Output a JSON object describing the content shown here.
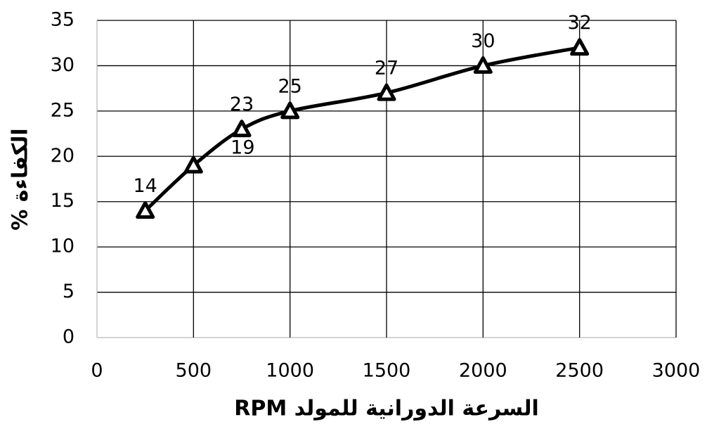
{
  "chart_data": {
    "type": "line",
    "xlabel": "السرعة الدورانية  للمولد RPM",
    "ylabel": "الكفاءة %",
    "x": [
      250,
      500,
      750,
      1000,
      1500,
      2000,
      2500
    ],
    "series": [
      {
        "color": "#000000",
        "values": [
          14,
          19,
          23,
          25,
          27,
          30,
          32
        ]
      }
    ],
    "xlim": [
      0,
      3000
    ],
    "xticks": [
      0,
      500,
      1000,
      1500,
      2000,
      2500,
      3000
    ],
    "ylim": [
      0,
      35
    ],
    "yticks": [
      0,
      5,
      10,
      15,
      20,
      25,
      30,
      35
    ],
    "grid": true,
    "smooth": true
  }
}
